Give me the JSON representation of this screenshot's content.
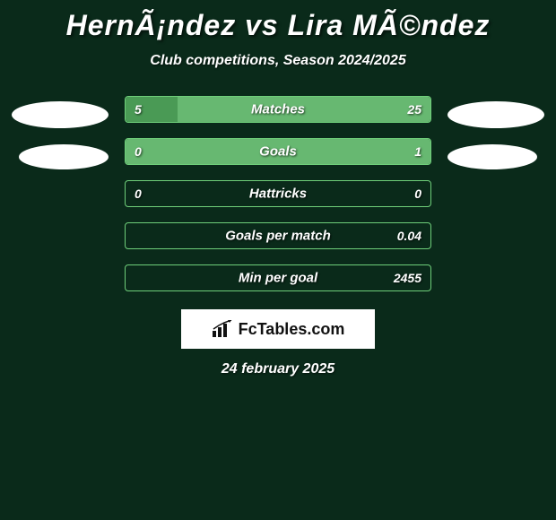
{
  "title": "HernÃ¡ndez vs Lira MÃ©ndez",
  "subtitle": "Club competitions, Season 2024/2025",
  "date": "24 february 2025",
  "logo_text": "FcTables.com",
  "colors": {
    "background": "#0a2a1a",
    "border_green": "#6fcf7a",
    "fill_green": "#4a9a55",
    "fill_green_light": "#5ab868",
    "badge": "#ffffff"
  },
  "stats": [
    {
      "label": "Matches",
      "left_value": "5",
      "right_value": "25",
      "left_pct": 17,
      "right_pct": 83,
      "left_fill": "#4a9a55",
      "right_fill": "#67b871",
      "border": "#6fcf7a"
    },
    {
      "label": "Goals",
      "left_value": "0",
      "right_value": "1",
      "left_pct": 0,
      "right_pct": 100,
      "left_fill": "transparent",
      "right_fill": "#67b871",
      "border": "#6fcf7a"
    },
    {
      "label": "Hattricks",
      "left_value": "0",
      "right_value": "0",
      "left_pct": 0,
      "right_pct": 0,
      "left_fill": "transparent",
      "right_fill": "transparent",
      "border": "#6fcf7a"
    },
    {
      "label": "Goals per match",
      "left_value": "",
      "right_value": "0.04",
      "left_pct": 0,
      "right_pct": 0,
      "left_fill": "transparent",
      "right_fill": "transparent",
      "border": "#6fcf7a"
    },
    {
      "label": "Min per goal",
      "left_value": "",
      "right_value": "2455",
      "left_pct": 0,
      "right_pct": 0,
      "left_fill": "transparent",
      "right_fill": "transparent",
      "border": "#6fcf7a"
    }
  ]
}
